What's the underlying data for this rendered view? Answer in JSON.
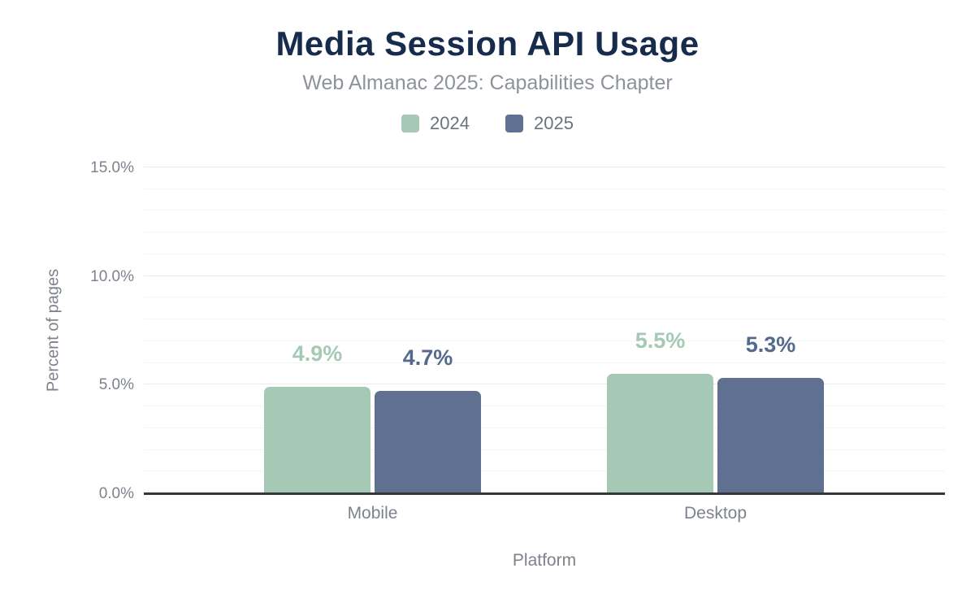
{
  "chart_data": {
    "type": "bar",
    "title": "Media Session API Usage",
    "subtitle": "Web Almanac 2025: Capabilities Chapter",
    "xlabel": "Platform",
    "ylabel": "Percent of pages",
    "categories": [
      "Mobile",
      "Desktop"
    ],
    "series": [
      {
        "name": "2024",
        "color": "#a6c9b6",
        "label_color": "#a6c9b6",
        "values": [
          4.9,
          5.5
        ],
        "labels": [
          "4.9%",
          "5.5%"
        ]
      },
      {
        "name": "2025",
        "color": "#5f7090",
        "label_color": "#546a8d",
        "values": [
          4.7,
          5.3
        ],
        "labels": [
          "4.7%",
          "5.3%"
        ]
      }
    ],
    "ylim": [
      0,
      15
    ],
    "yticks": [
      {
        "value": 0,
        "label": "0.0%"
      },
      {
        "value": 5,
        "label": "5.0%"
      },
      {
        "value": 10,
        "label": "10.0%"
      },
      {
        "value": 15,
        "label": "15.0%"
      }
    ],
    "grid": {
      "minor_step": 1,
      "major_step": 5,
      "on": true
    },
    "legend_position": "top",
    "colors": {
      "background": "#ffffff",
      "title": "#172b4d",
      "subtitle": "#8d929b",
      "axis_text": "#7d828c",
      "axis_line": "#35373b",
      "grid_minor": "#f3f4f6",
      "grid_major": "#e8eaec"
    }
  }
}
